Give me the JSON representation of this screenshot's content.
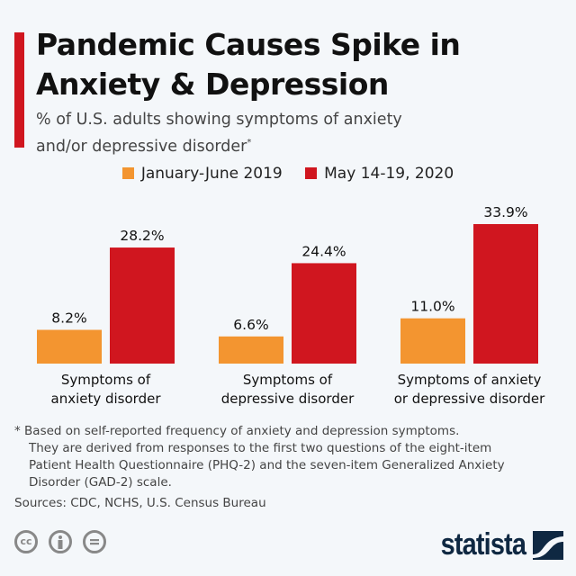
{
  "title": {
    "line1": "Pandemic Causes Spike in",
    "line2": "Anxiety & Depression"
  },
  "subtitle": {
    "line1": "% of U.S. adults showing symptoms of anxiety",
    "line2": "and/or depressive disorder",
    "marker": "*"
  },
  "colors": {
    "accent": "#d0161f",
    "series_2019": "#f39530",
    "series_2020": "#d0161f",
    "logo": "#0f2842"
  },
  "chart_data": {
    "type": "bar",
    "categories": [
      "Symptoms of anxiety disorder",
      "Symptoms of depressive disorder",
      "Symptoms of anxiety or depressive disorder"
    ],
    "category_lines": [
      [
        "Symptoms of",
        "anxiety disorder"
      ],
      [
        "Symptoms of",
        "depressive disorder"
      ],
      [
        "Symptoms of anxiety",
        "or depressive disorder"
      ]
    ],
    "series": [
      {
        "name": "January-June 2019",
        "values": [
          8.2,
          6.6,
          11.0
        ],
        "labels": [
          "8.2%",
          "6.6%",
          "11.0%"
        ],
        "color": "#f39530"
      },
      {
        "name": "May 14-19, 2020",
        "values": [
          28.2,
          24.4,
          33.9
        ],
        "labels": [
          "28.2%",
          "24.4%",
          "33.9%"
        ],
        "color": "#d0161f"
      }
    ],
    "ylim": [
      0,
      34
    ],
    "grid": false,
    "legend": "top-center"
  },
  "footnote": {
    "marker": "*",
    "line1": "Based on self-reported frequency of anxiety and depression symptoms.",
    "line2": "They are derived from responses to the first two questions of the eight-item",
    "line3": "Patient Health Questionnaire (PHQ-2) and the seven-item Generalized Anxiety",
    "line4": "Disorder (GAD-2) scale."
  },
  "sources": "Sources: CDC, NCHS, U.S. Census Bureau",
  "license_icons": [
    "creative-commons-icon",
    "attribution-icon",
    "no-derivatives-icon"
  ],
  "license_text": {
    "cc": "cc"
  },
  "logo": {
    "text": "statista"
  }
}
